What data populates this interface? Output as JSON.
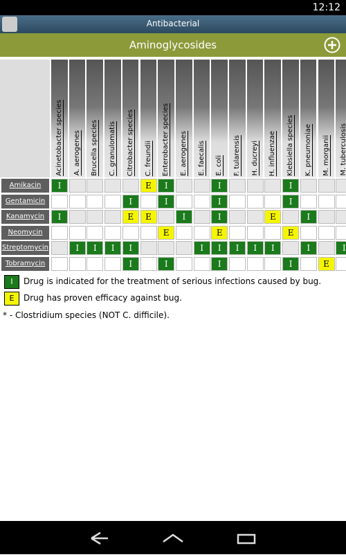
{
  "status_bar": {
    "time": "12:12"
  },
  "app_bar": {
    "title": "Antibacterial"
  },
  "section": {
    "title": "Aminoglycosides"
  },
  "table": {
    "columns": [
      "Acinetobacter species",
      "A. aerogenes",
      "Brucella species",
      "C. granulomatis",
      "Citrobacter species",
      "C. freundii",
      "Enterobacter species",
      "E. aerogenes",
      "E. faecalis",
      "E. coli",
      "F. tularensis",
      "H. ducreyi",
      "H. influenzae",
      "Klebsiella species",
      "K. pneumoniae",
      "M. morganii",
      "M. tuberculosis"
    ],
    "rows": [
      {
        "drug": "Amikacin",
        "cells": [
          "I",
          null,
          null,
          null,
          null,
          "E",
          "I",
          null,
          null,
          "I",
          null,
          null,
          null,
          "I",
          null,
          null,
          null
        ]
      },
      {
        "drug": "Gentamicin",
        "cells": [
          null,
          null,
          null,
          null,
          "I",
          null,
          "I",
          null,
          null,
          "I",
          null,
          null,
          null,
          "I",
          null,
          null,
          null
        ]
      },
      {
        "drug": "Kanamycin",
        "cells": [
          "I",
          null,
          null,
          null,
          "E",
          "E",
          null,
          "I",
          null,
          "I",
          null,
          null,
          "E",
          null,
          "I",
          null,
          null
        ]
      },
      {
        "drug": "Neomycin",
        "cells": [
          null,
          null,
          null,
          null,
          null,
          null,
          "E",
          null,
          null,
          "E",
          null,
          null,
          null,
          "E",
          null,
          null,
          null
        ]
      },
      {
        "drug": "Streptomycin",
        "cells": [
          null,
          "I",
          "I",
          "I",
          "I",
          null,
          null,
          null,
          "I",
          "I",
          "I",
          "I",
          "I",
          null,
          "I",
          null,
          "I"
        ]
      },
      {
        "drug": "Tobramycin",
        "cells": [
          null,
          null,
          null,
          null,
          "I",
          null,
          "I",
          null,
          null,
          "I",
          null,
          null,
          null,
          "I",
          null,
          "E",
          null
        ]
      }
    ]
  },
  "legend": [
    {
      "symbol": "I",
      "text": "Drug is indicated for the treatment of serious infections caused by bug."
    },
    {
      "symbol": "E",
      "text": "Drug has proven efficacy against bug."
    }
  ],
  "footnote": "* - Clostridium species (NOT C. difficile)."
}
